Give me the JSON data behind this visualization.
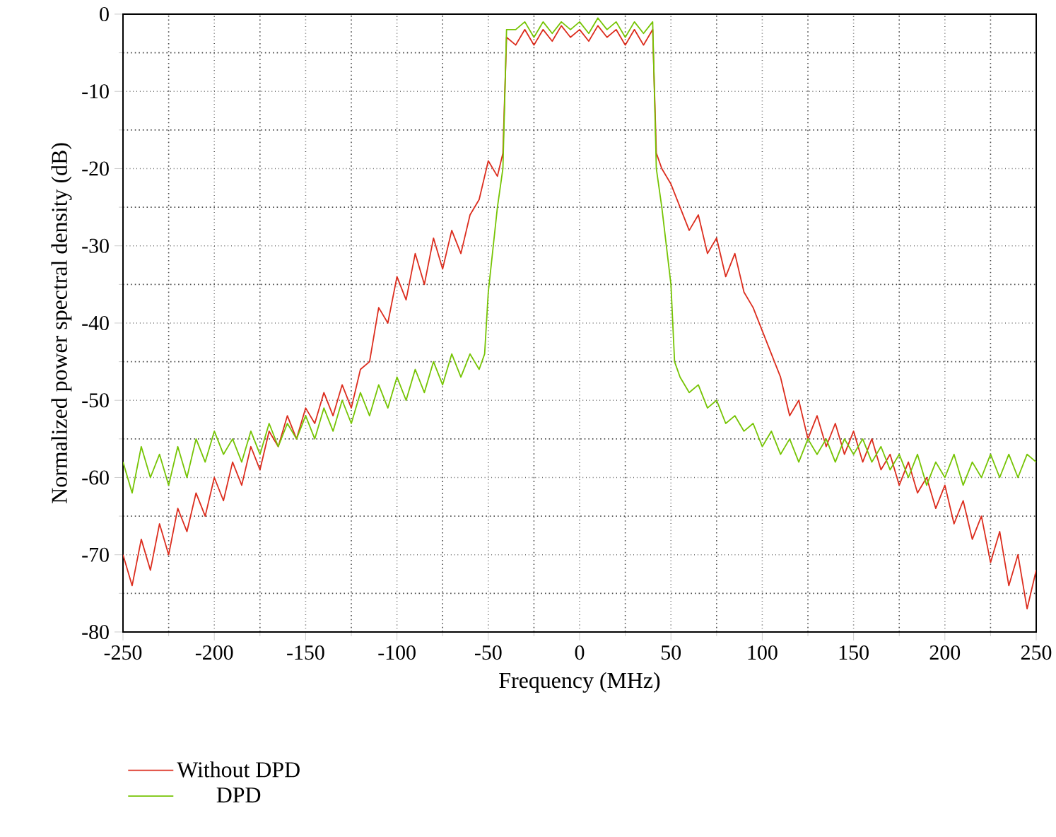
{
  "chart_data": {
    "type": "line",
    "xlabel": "Frequency (MHz)",
    "ylabel": "Normalized power spectral density (dB)",
    "xlim": [
      -250,
      250
    ],
    "ylim": [
      -80,
      0
    ],
    "xticks": [
      -250,
      -200,
      -150,
      -100,
      -50,
      0,
      50,
      100,
      150,
      200,
      250
    ],
    "yticks": [
      -80,
      -70,
      -60,
      -50,
      -40,
      -30,
      -20,
      -10,
      0
    ],
    "grid": true,
    "legend": "bottom left",
    "series": [
      {
        "name": "Without DPD",
        "color": "#dc2d1e",
        "x": [
          -250,
          -245,
          -240,
          -235,
          -230,
          -225,
          -220,
          -215,
          -210,
          -205,
          -200,
          -195,
          -190,
          -185,
          -180,
          -175,
          -170,
          -165,
          -160,
          -155,
          -150,
          -145,
          -140,
          -135,
          -130,
          -125,
          -120,
          -115,
          -110,
          -105,
          -100,
          -95,
          -90,
          -85,
          -80,
          -75,
          -70,
          -65,
          -60,
          -55,
          -50,
          -45,
          -42,
          -40,
          -35,
          -30,
          -25,
          -20,
          -15,
          -10,
          -5,
          0,
          5,
          10,
          15,
          20,
          25,
          30,
          35,
          40,
          42,
          45,
          50,
          55,
          60,
          65,
          70,
          75,
          80,
          85,
          90,
          95,
          100,
          105,
          110,
          115,
          120,
          125,
          130,
          135,
          140,
          145,
          150,
          155,
          160,
          165,
          170,
          175,
          180,
          185,
          190,
          195,
          200,
          205,
          210,
          215,
          220,
          225,
          230,
          235,
          240,
          245,
          250
        ],
        "values": [
          -70,
          -74,
          -68,
          -72,
          -66,
          -70,
          -64,
          -67,
          -62,
          -65,
          -60,
          -63,
          -58,
          -61,
          -56,
          -59,
          -54,
          -56,
          -52,
          -55,
          -51,
          -53,
          -49,
          -52,
          -48,
          -51,
          -46,
          -45,
          -38,
          -40,
          -34,
          -37,
          -31,
          -35,
          -29,
          -33,
          -28,
          -31,
          -26,
          -24,
          -19,
          -21,
          -18,
          -3,
          -4,
          -2,
          -4,
          -2,
          -3.5,
          -1.5,
          -3,
          -2,
          -3.5,
          -1.5,
          -3,
          -2,
          -4,
          -2,
          -4,
          -2,
          -18,
          -20,
          -22,
          -25,
          -28,
          -26,
          -31,
          -29,
          -34,
          -31,
          -36,
          -38,
          -41,
          -44,
          -47,
          -52,
          -50,
          -55,
          -52,
          -56,
          -53,
          -57,
          -54,
          -58,
          -55,
          -59,
          -57,
          -61,
          -58,
          -62,
          -60,
          -64,
          -61,
          -66,
          -63,
          -68,
          -65,
          -71,
          -67,
          -74,
          -70,
          -77,
          -72
        ]
      },
      {
        "name": "DPD",
        "color": "#76c404",
        "x": [
          -250,
          -245,
          -240,
          -235,
          -230,
          -225,
          -220,
          -215,
          -210,
          -205,
          -200,
          -195,
          -190,
          -185,
          -180,
          -175,
          -170,
          -165,
          -160,
          -155,
          -150,
          -145,
          -140,
          -135,
          -130,
          -125,
          -120,
          -115,
          -110,
          -105,
          -100,
          -95,
          -90,
          -85,
          -80,
          -75,
          -70,
          -65,
          -60,
          -55,
          -52,
          -50,
          -45,
          -42,
          -40,
          -35,
          -30,
          -25,
          -20,
          -15,
          -10,
          -5,
          0,
          5,
          10,
          15,
          20,
          25,
          30,
          35,
          40,
          42,
          45,
          50,
          52,
          55,
          60,
          65,
          70,
          75,
          80,
          85,
          90,
          95,
          100,
          105,
          110,
          115,
          120,
          125,
          130,
          135,
          140,
          145,
          150,
          155,
          160,
          165,
          170,
          175,
          180,
          185,
          190,
          195,
          200,
          205,
          210,
          215,
          220,
          225,
          230,
          235,
          240,
          245,
          250
        ],
        "values": [
          -58,
          -62,
          -56,
          -60,
          -57,
          -61,
          -56,
          -60,
          -55,
          -58,
          -54,
          -57,
          -55,
          -58,
          -54,
          -57,
          -53,
          -56,
          -53,
          -55,
          -52,
          -55,
          -51,
          -54,
          -50,
          -53,
          -49,
          -52,
          -48,
          -51,
          -47,
          -50,
          -46,
          -49,
          -45,
          -48,
          -44,
          -47,
          -44,
          -46,
          -44,
          -36,
          -25,
          -20,
          -2,
          -2,
          -1,
          -3,
          -1,
          -2.5,
          -1,
          -2,
          -1,
          -2.5,
          -0.5,
          -2,
          -1,
          -3,
          -1,
          -2.5,
          -1,
          -20,
          -25,
          -35,
          -45,
          -47,
          -49,
          -48,
          -51,
          -50,
          -53,
          -52,
          -54,
          -53,
          -56,
          -54,
          -57,
          -55,
          -58,
          -55,
          -57,
          -55,
          -58,
          -55,
          -57,
          -55,
          -58,
          -56,
          -59,
          -57,
          -60,
          -57,
          -61,
          -58,
          -60,
          -57,
          -61,
          -58,
          -60,
          -57,
          -60,
          -57,
          -60,
          -57,
          -58
        ]
      }
    ]
  }
}
